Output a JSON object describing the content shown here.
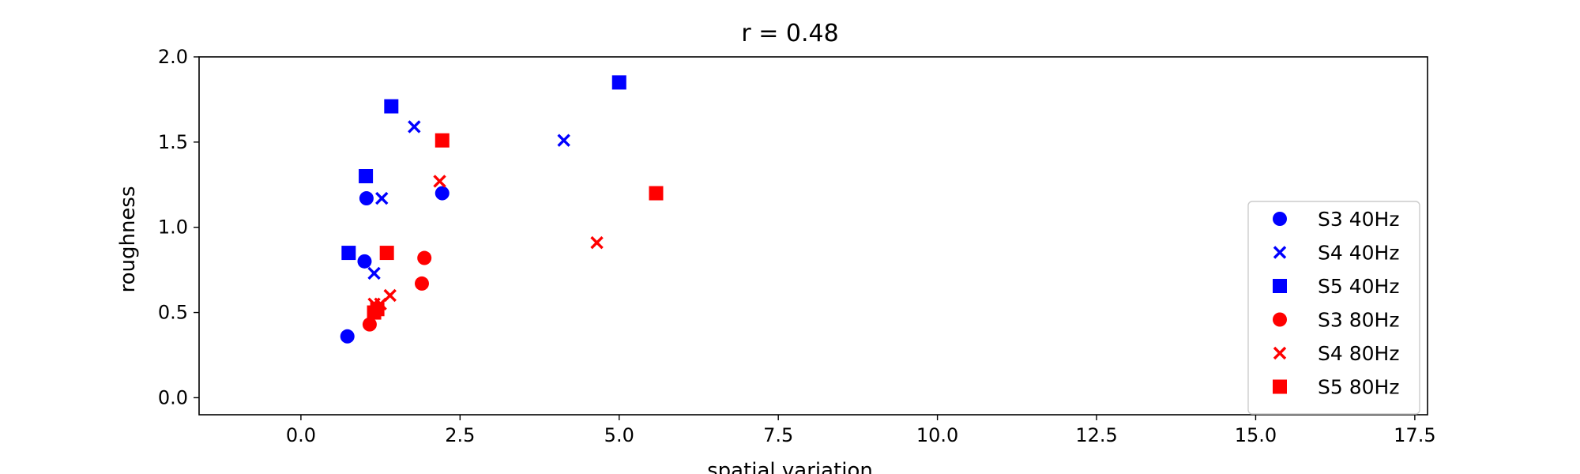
{
  "chart_data": {
    "type": "scatter",
    "title": "r = 0.48",
    "xlabel": "spatial variation",
    "ylabel": "roughness",
    "xlim": [
      -1.6,
      17.7
    ],
    "ylim": [
      -0.1,
      2.0
    ],
    "xticks": [
      0.0,
      2.5,
      5.0,
      7.5,
      10.0,
      12.5,
      15.0,
      17.5
    ],
    "xtick_labels": [
      "0.0",
      "2.5",
      "5.0",
      "7.5",
      "10.0",
      "12.5",
      "15.0",
      "17.5"
    ],
    "yticks": [
      0.0,
      0.5,
      1.0,
      1.5,
      2.0
    ],
    "ytick_labels": [
      "0.0",
      "0.5",
      "1.0",
      "1.5",
      "2.0"
    ],
    "grid": false,
    "legend_position": "lower-right",
    "series": [
      {
        "name": "S3 40Hz",
        "marker": "circle",
        "color": "#0000ff",
        "points": [
          [
            0.73,
            0.36
          ],
          [
            1.0,
            0.8
          ],
          [
            1.03,
            1.17
          ],
          [
            2.22,
            1.2
          ]
        ]
      },
      {
        "name": "S4 40Hz",
        "marker": "x",
        "color": "#0000ff",
        "points": [
          [
            1.15,
            0.73
          ],
          [
            1.27,
            1.17
          ],
          [
            1.78,
            1.59
          ],
          [
            4.13,
            1.51
          ]
        ]
      },
      {
        "name": "S5 40Hz",
        "marker": "square",
        "color": "#0000ff",
        "points": [
          [
            0.75,
            0.85
          ],
          [
            1.02,
            1.3
          ],
          [
            1.42,
            1.71
          ],
          [
            5.0,
            1.85
          ]
        ]
      },
      {
        "name": "S3 80Hz",
        "marker": "circle",
        "color": "#ff0000",
        "points": [
          [
            1.08,
            0.43
          ],
          [
            1.9,
            0.67
          ],
          [
            1.94,
            0.82
          ]
        ]
      },
      {
        "name": "S4 80Hz",
        "marker": "x",
        "color": "#ff0000",
        "points": [
          [
            1.15,
            0.55
          ],
          [
            1.25,
            0.55
          ],
          [
            1.4,
            0.6
          ],
          [
            2.18,
            1.27
          ],
          [
            4.65,
            0.91
          ]
        ]
      },
      {
        "name": "S5 80Hz",
        "marker": "square",
        "color": "#ff0000",
        "points": [
          [
            1.15,
            0.5
          ],
          [
            1.2,
            0.52
          ],
          [
            1.35,
            0.85
          ],
          [
            2.22,
            1.51
          ],
          [
            5.58,
            1.2
          ]
        ]
      }
    ]
  }
}
